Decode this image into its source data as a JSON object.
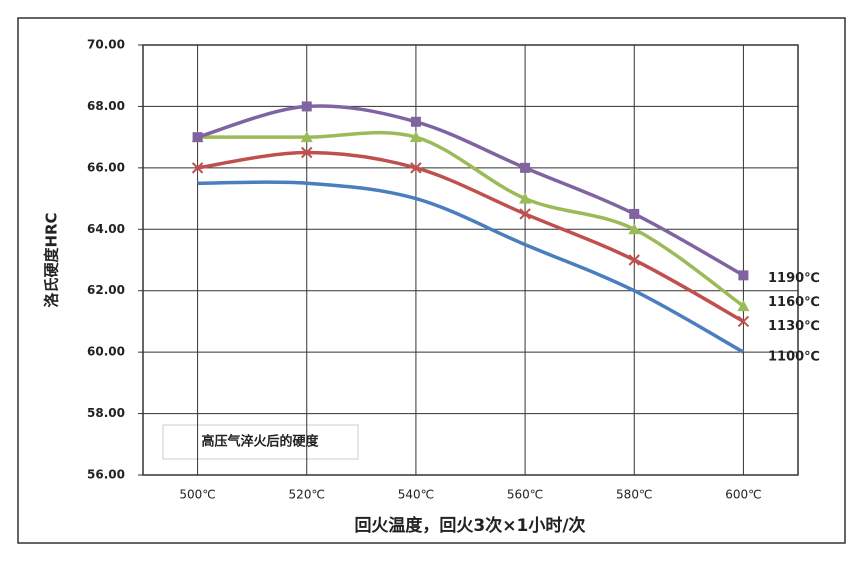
{
  "chart_data": {
    "type": "line",
    "smooth": true,
    "grid": true,
    "x_label": "回火温度，回火3次×1小时/次",
    "y_label": "洛氏硬度HRC",
    "annotation": "高压气淬火后的硬度",
    "categories": [
      "500℃",
      "520℃",
      "540℃",
      "560℃",
      "580℃",
      "600℃"
    ],
    "ylim": [
      56,
      70
    ],
    "yticks": [
      {
        "value": 56,
        "label": "56.00"
      },
      {
        "value": 58,
        "label": "58.00"
      },
      {
        "value": 60,
        "label": "60.00"
      },
      {
        "value": 62,
        "label": "62.00"
      },
      {
        "value": 64,
        "label": "64.00"
      },
      {
        "value": 66,
        "label": "66.00"
      },
      {
        "value": 68,
        "label": "68.00"
      },
      {
        "value": 70,
        "label": "70.00"
      }
    ],
    "series": [
      {
        "name": "1100℃",
        "color": "#4a7ebf",
        "marker": "none",
        "values": [
          65.5,
          65.5,
          65,
          63.5,
          62,
          60
        ]
      },
      {
        "name": "1130℃",
        "color": "#c0504d",
        "marker": "x",
        "values": [
          66,
          66.5,
          66,
          64.5,
          63,
          61
        ]
      },
      {
        "name": "1160℃",
        "color": "#9bbb59",
        "marker": "triangle",
        "values": [
          67,
          67,
          67,
          65,
          64,
          61.5
        ]
      },
      {
        "name": "1190℃",
        "color": "#8064a2",
        "marker": "square",
        "values": [
          67,
          68,
          67.5,
          66,
          64.5,
          62.5
        ]
      }
    ]
  }
}
